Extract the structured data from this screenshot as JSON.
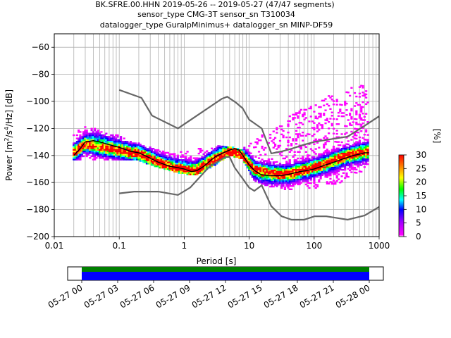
{
  "title": {
    "line1": "BK.SFRE.00.HHN   2019-05-26 -- 2019-05-27  (47/47 segments)",
    "line2": "sensor_type CMG-3T sensor_sn T310034",
    "line3": "datalogger_type GuralpMinimus+ datalogger_sn MINP-DF59"
  },
  "colors": {
    "grid": "#b0b0b0",
    "noise_models": "#666666",
    "mean_line": "#000000",
    "coverage_bar": "#0000ff",
    "coverage_strip": "#008000"
  },
  "chart_data": {
    "type": "heatmap",
    "xlabel": "Period [s]",
    "ylabel": "Power [m^2/s^4/Hz] [dB]",
    "xscale": "log",
    "xlim": [
      0.01,
      1000
    ],
    "ylim": [
      -200,
      -50
    ],
    "x_ticks": [
      "0.01",
      "0.1",
      "1",
      "10",
      "100",
      "1000"
    ],
    "y_ticks": [
      "-60",
      "-80",
      "-100",
      "-120",
      "-140",
      "-160",
      "-180",
      "-200"
    ],
    "grid": true,
    "noise_models": [
      {
        "name": "high",
        "x": [
          0.1,
          0.22,
          0.32,
          0.8,
          3.8,
          4.6,
          6.3,
          7.9,
          10,
          15.6,
          21.9,
          31.6,
          45,
          70,
          101,
          154,
          328,
          600,
          1000
        ],
        "y": [
          -91.5,
          -97.4,
          -110.5,
          -120,
          -98,
          -96.5,
          -101,
          -105,
          -113.5,
          -120,
          -138.5,
          -137,
          -135,
          -132,
          -130,
          -128.5,
          -126,
          -118,
          -111
        ]
      },
      {
        "name": "low",
        "x": [
          0.1,
          0.17,
          0.4,
          0.8,
          1.24,
          2.4,
          4.3,
          5.0,
          6.0,
          10,
          12,
          15.6,
          21.9,
          31.6,
          45,
          70,
          101,
          154,
          328,
          600,
          1000
        ],
        "y": [
          -168,
          -166.7,
          -166.7,
          -169.2,
          -163.7,
          -148.6,
          -141.1,
          -141.1,
          -149,
          -163.8,
          -166.2,
          -162.1,
          -177.5,
          -185,
          -187.5,
          -187.5,
          -185,
          -185,
          -187.5,
          -184.4,
          -178
        ]
      }
    ],
    "mean_curve": {
      "x": [
        0.02,
        0.025,
        0.03,
        0.04,
        0.05,
        0.07,
        0.1,
        0.15,
        0.2,
        0.3,
        0.4,
        0.6,
        0.8,
        1.0,
        1.3,
        1.6,
        2.0,
        2.5,
        3.0,
        4.0,
        5.0,
        6.0,
        7.0,
        8.0,
        10,
        12,
        15,
        20,
        30,
        40,
        60,
        80,
        100,
        150,
        200,
        300,
        400,
        500,
        600,
        700
      ],
      "y": [
        -140,
        -135,
        -130,
        -129,
        -130,
        -132,
        -134,
        -137,
        -138,
        -142,
        -145,
        -148,
        -149,
        -150,
        -152,
        -151,
        -148,
        -144,
        -141,
        -138,
        -136,
        -135,
        -136,
        -140,
        -147,
        -151,
        -154,
        -155,
        -155,
        -154,
        -152,
        -151,
        -150,
        -147,
        -145,
        -142,
        -140,
        -139,
        -138,
        -138
      ]
    },
    "psd_cloud_profiles": [
      {
        "x": [
          0.02,
          0.03,
          0.05,
          0.1,
          0.2,
          0.4,
          0.8,
          1.5,
          3,
          5,
          8,
          12,
          20,
          40,
          80,
          150,
          300,
          600
        ],
        "y": [
          -137,
          -132,
          -135,
          -137,
          -139,
          -145,
          -150,
          -151,
          -143,
          -138,
          -140,
          -150,
          -152,
          -154,
          -150,
          -146,
          -140,
          -137
        ]
      },
      {
        "x": [
          0.02,
          0.03,
          0.05,
          0.1,
          0.2,
          0.4,
          0.8,
          1.5,
          3,
          5,
          8,
          12,
          20,
          40,
          80,
          150,
          300,
          600
        ],
        "y": [
          -124,
          -118,
          -122,
          -126,
          -132,
          -136,
          -138,
          -136,
          -134,
          -133,
          -136,
          -128,
          -124,
          -112,
          -103,
          -97,
          -92,
          -88
        ]
      },
      {
        "x": [
          0.02,
          0.03,
          0.05,
          0.1,
          0.2,
          0.4,
          0.8,
          1.5,
          3,
          5,
          8,
          12,
          20,
          40,
          80,
          150,
          300,
          600
        ],
        "y": [
          -143,
          -142,
          -143,
          -142,
          -143,
          -148,
          -152,
          -154,
          -146,
          -139,
          -142,
          -158,
          -162,
          -165,
          -164,
          -162,
          -158,
          -150
        ]
      }
    ],
    "colorbar": {
      "label": "[%]",
      "ticks": [
        "0",
        "5",
        "10",
        "15",
        "20",
        "25",
        "30"
      ],
      "range": [
        0,
        30
      ]
    }
  },
  "coverage": {
    "x_ticks": [
      "05-27 00",
      "05-27 03",
      "05-27 06",
      "05-27 09",
      "05-27 12",
      "05-27 15",
      "05-27 18",
      "05-27 21",
      "05-28 00"
    ],
    "span_hours": [
      0,
      24
    ]
  }
}
